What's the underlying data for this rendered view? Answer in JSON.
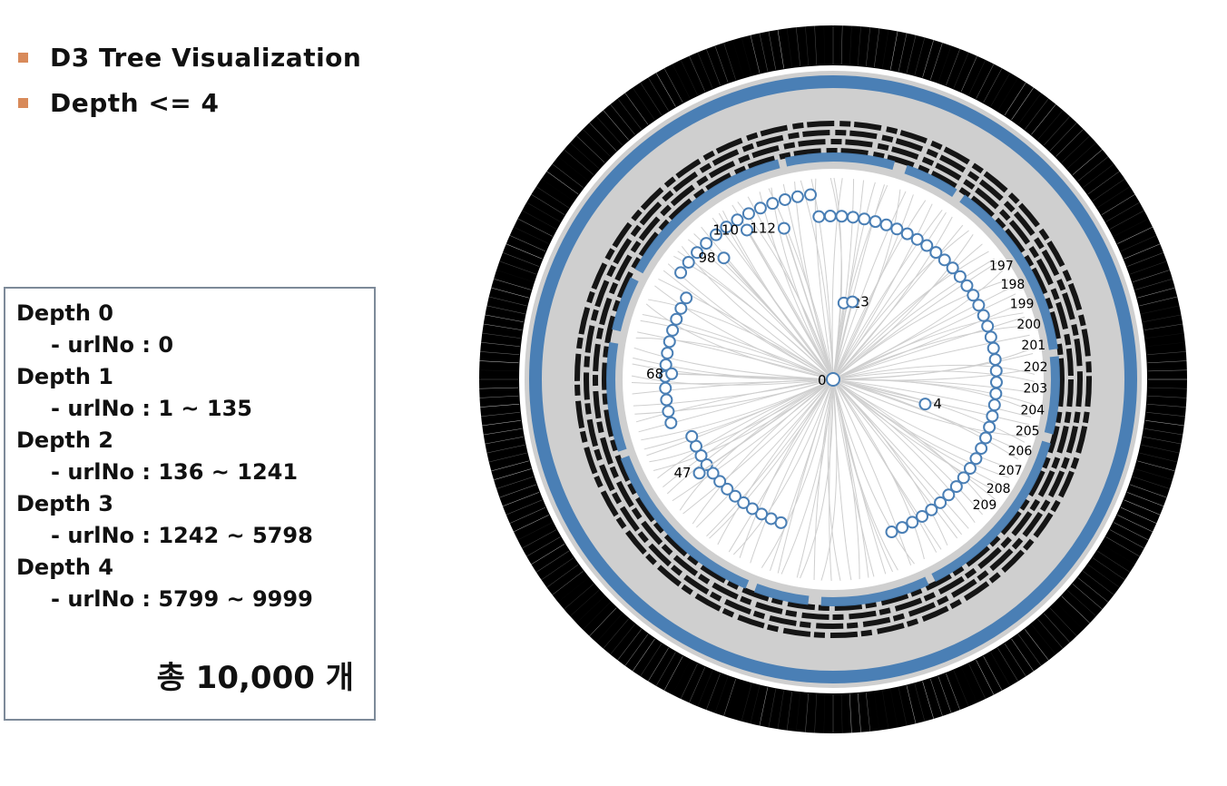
{
  "bullets": [
    {
      "label": "D3 Tree Visualization"
    },
    {
      "label": "Depth <= 4"
    }
  ],
  "colors": {
    "bullet": "#d88a5a",
    "node_stroke": "#4a7fb5",
    "link": "#cfcfcf",
    "label": "#000000"
  },
  "depth_info": [
    {
      "title": "Depth 0",
      "range": "- urlNo : 0"
    },
    {
      "title": "Depth 1",
      "range": "- urlNo : 1 ~ 135"
    },
    {
      "title": "Depth 2",
      "range": "- urlNo : 136 ~ 1241"
    },
    {
      "title": "Depth 3",
      "range": "- urlNo : 1242 ~ 5798"
    },
    {
      "title": "Depth 4",
      "range": "- urlNo : 5799 ~ 9999"
    }
  ],
  "total_label": "총 10,000 개",
  "tree": {
    "root_label": "0",
    "labeled_nodes": [
      "2",
      "3",
      "4",
      "47",
      "68",
      "98",
      "110",
      "112",
      "197",
      "198",
      "199",
      "200",
      "201",
      "202",
      "203",
      "204",
      "205",
      "206",
      "207",
      "208",
      "209"
    ]
  }
}
